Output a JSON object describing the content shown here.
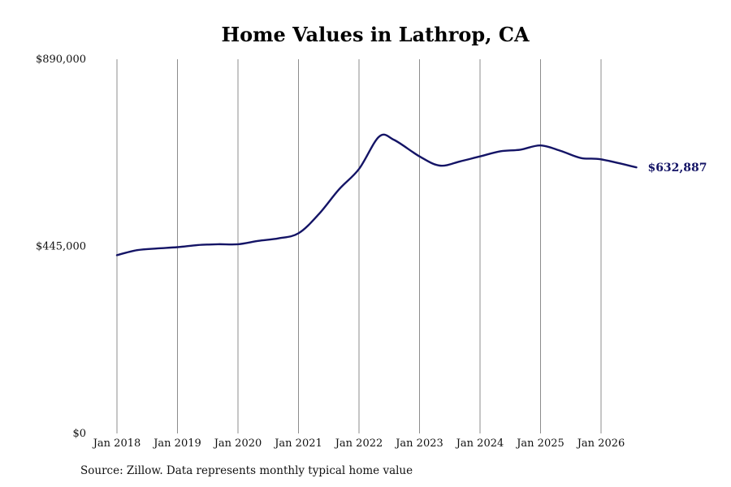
{
  "chart_data": {
    "type": "line",
    "title": "Home Values in Lathrop, CA",
    "xlabel": "",
    "ylabel": "",
    "ylim": [
      0,
      890000
    ],
    "y_ticks": [
      {
        "value": 0,
        "label": "$0"
      },
      {
        "value": 445000,
        "label": "$445,000"
      },
      {
        "value": 890000,
        "label": "$890,000"
      }
    ],
    "x_range": [
      "2018-01",
      "2026-08"
    ],
    "x_ticks": [
      {
        "date": "2018-01",
        "label": "Jan 2018"
      },
      {
        "date": "2019-01",
        "label": "Jan 2019"
      },
      {
        "date": "2020-01",
        "label": "Jan 2020"
      },
      {
        "date": "2021-01",
        "label": "Jan 2021"
      },
      {
        "date": "2022-01",
        "label": "Jan 2022"
      },
      {
        "date": "2023-01",
        "label": "Jan 2023"
      },
      {
        "date": "2024-01",
        "label": "Jan 2024"
      },
      {
        "date": "2025-01",
        "label": "Jan 2025"
      },
      {
        "date": "2026-01",
        "label": "Jan 2026"
      }
    ],
    "grid": {
      "vertical": true,
      "horizontal": false
    },
    "series": [
      {
        "color": "#141466",
        "points": [
          [
            "2018-01",
            424000
          ],
          [
            "2018-05",
            436000
          ],
          [
            "2018-09",
            440000
          ],
          [
            "2019-01",
            443000
          ],
          [
            "2019-05",
            448000
          ],
          [
            "2019-09",
            450000
          ],
          [
            "2020-01",
            450000
          ],
          [
            "2020-05",
            458000
          ],
          [
            "2020-09",
            464000
          ],
          [
            "2021-01",
            476000
          ],
          [
            "2021-05",
            521000
          ],
          [
            "2021-09",
            580000
          ],
          [
            "2022-01",
            629000
          ],
          [
            "2022-05",
            706000
          ],
          [
            "2022-08",
            698000
          ],
          [
            "2023-01",
            659000
          ],
          [
            "2023-05",
            637000
          ],
          [
            "2023-09",
            647000
          ],
          [
            "2024-01",
            659000
          ],
          [
            "2024-05",
            671000
          ],
          [
            "2024-09",
            675000
          ],
          [
            "2025-01",
            685000
          ],
          [
            "2025-05",
            672000
          ],
          [
            "2025-09",
            655000
          ],
          [
            "2026-01",
            652000
          ],
          [
            "2026-08",
            632887
          ]
        ]
      }
    ],
    "annotations": [
      {
        "text": "$632,887",
        "at": "2026-08",
        "value": 632887,
        "color": "#141466"
      }
    ]
  },
  "source": "Source: Zillow. Data represents monthly typical home value"
}
